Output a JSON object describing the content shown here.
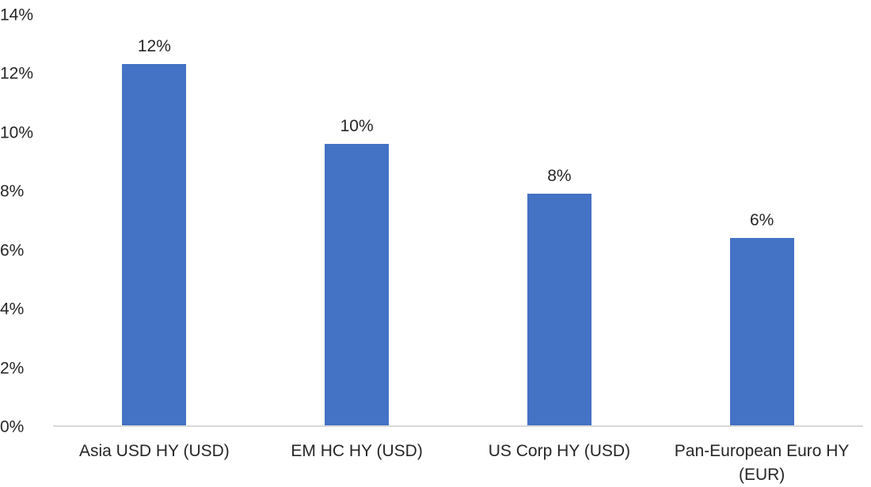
{
  "chart_data": {
    "type": "bar",
    "title": "",
    "xlabel": "",
    "ylabel": "",
    "categories": [
      "Asia USD HY (USD)",
      "EM HC HY (USD)",
      "US Corp HY (USD)",
      "Pan-European Euro HY (EUR)"
    ],
    "values": [
      12.3,
      9.6,
      7.9,
      6.4
    ],
    "data_labels": [
      "12%",
      "10%",
      "8%",
      "6%"
    ],
    "ylim": [
      0,
      14
    ],
    "y_ticks": [
      "0%",
      "2%",
      "4%",
      "6%",
      "8%",
      "10%",
      "12%",
      "14%"
    ],
    "y_tick_values": [
      0,
      2,
      4,
      6,
      8,
      10,
      12,
      14
    ],
    "grid": "off",
    "legend": "none",
    "colors": {
      "bar": "#4472C4",
      "axis_line": "#D9D9D9",
      "text": "#262626"
    }
  }
}
